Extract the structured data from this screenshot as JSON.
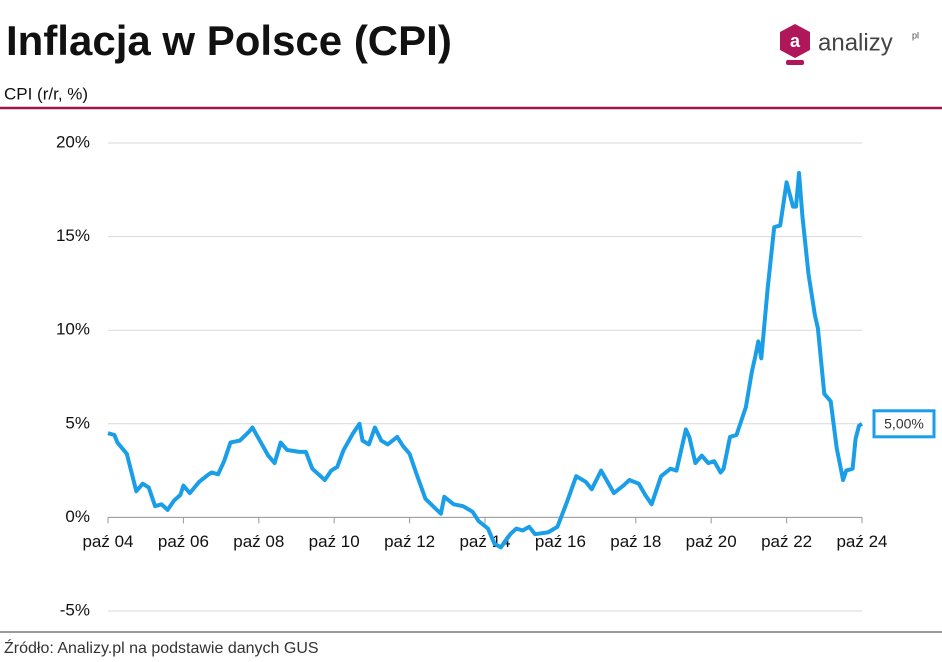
{
  "chart_data": {
    "type": "line",
    "title": "Inflacja w Polsce (CPI)",
    "subtitle": "CPI (r/r, %)",
    "source": "Źródło: Analizy.pl na podstawie danych GUS",
    "logo": {
      "icon": "a",
      "text": "analizy",
      "suffix": "pl"
    },
    "x": [
      2004.75,
      2004.92,
      2005.0,
      2005.25,
      2005.5,
      2005.67,
      2005.83,
      2006.0,
      2006.17,
      2006.33,
      2006.5,
      2006.67,
      2006.75,
      2006.92,
      2007.17,
      2007.42,
      2007.5,
      2007.67,
      2007.83,
      2008.0,
      2008.25,
      2008.5,
      2008.58,
      2008.75,
      2009.0,
      2009.17,
      2009.33,
      2009.5,
      2009.83,
      2010.0,
      2010.17,
      2010.5,
      2010.67,
      2010.83,
      2011.0,
      2011.25,
      2011.42,
      2011.5,
      2011.67,
      2011.83,
      2012.0,
      2012.17,
      2012.42,
      2012.58,
      2012.75,
      2012.92,
      2013.17,
      2013.42,
      2013.58,
      2013.67,
      2013.92,
      2014.17,
      2014.42,
      2014.58,
      2014.83,
      2015.0,
      2015.17,
      2015.42,
      2015.58,
      2015.75,
      2015.92,
      2016.08,
      2016.42,
      2016.67,
      2016.92,
      2017.17,
      2017.42,
      2017.58,
      2017.83,
      2018.0,
      2018.17,
      2018.42,
      2018.58,
      2018.83,
      2019.0,
      2019.17,
      2019.42,
      2019.67,
      2019.83,
      2020.08,
      2020.17,
      2020.33,
      2020.5,
      2020.67,
      2020.83,
      2021.0,
      2021.08,
      2021.25,
      2021.42,
      2021.67,
      2021.83,
      2021.92,
      2022.0,
      2022.08,
      2022.25,
      2022.42,
      2022.58,
      2022.75,
      2022.92,
      2023.0,
      2023.08,
      2023.17,
      2023.33,
      2023.5,
      2023.58,
      2023.75,
      2023.92,
      2024.08,
      2024.25,
      2024.33,
      2024.5,
      2024.58,
      2024.67,
      2024.75
    ],
    "series": [
      {
        "name": "CPI",
        "color": "#1a9ee8",
        "values": [
          4.5,
          4.4,
          4.0,
          3.4,
          1.4,
          1.8,
          1.6,
          0.6,
          0.7,
          0.4,
          0.9,
          1.2,
          1.7,
          1.3,
          1.9,
          2.3,
          2.4,
          2.3,
          3.0,
          4.0,
          4.1,
          4.6,
          4.8,
          4.2,
          3.3,
          2.9,
          4.0,
          3.6,
          3.5,
          3.5,
          2.6,
          2.0,
          2.5,
          2.7,
          3.6,
          4.5,
          5.0,
          4.1,
          3.9,
          4.8,
          4.1,
          3.9,
          4.3,
          3.8,
          3.4,
          2.4,
          1.0,
          0.5,
          0.2,
          1.1,
          0.7,
          0.6,
          0.3,
          -0.2,
          -0.6,
          -1.4,
          -1.6,
          -0.9,
          -0.6,
          -0.7,
          -0.5,
          -0.9,
          -0.8,
          -0.5,
          0.8,
          2.2,
          1.9,
          1.5,
          2.5,
          1.9,
          1.3,
          1.7,
          2.0,
          1.8,
          1.2,
          0.7,
          2.2,
          2.6,
          2.5,
          4.7,
          4.3,
          2.9,
          3.3,
          2.9,
          3.0,
          2.4,
          2.6,
          4.3,
          4.4,
          5.9,
          7.8,
          8.6,
          9.4,
          8.5,
          12.3,
          15.5,
          15.6,
          17.9,
          16.6,
          16.6,
          18.4,
          16.1,
          13.0,
          10.8,
          10.1,
          6.6,
          6.2,
          3.7,
          2.0,
          2.5,
          2.6,
          4.2,
          4.9,
          5.0
        ]
      }
    ],
    "last_value_label": "5,00%",
    "xlim": [
      2004.75,
      2024.75
    ],
    "xticks": [
      {
        "value": 2004.75,
        "label": "paź 04"
      },
      {
        "value": 2006.75,
        "label": "paź 06"
      },
      {
        "value": 2008.75,
        "label": "paź 08"
      },
      {
        "value": 2010.75,
        "label": "paź 10"
      },
      {
        "value": 2012.75,
        "label": "paź 12"
      },
      {
        "value": 2014.75,
        "label": "paź 14"
      },
      {
        "value": 2016.75,
        "label": "paź 16"
      },
      {
        "value": 2018.75,
        "label": "paź 18"
      },
      {
        "value": 2020.75,
        "label": "paź 20"
      },
      {
        "value": 2022.75,
        "label": "paź 22"
      },
      {
        "value": 2024.75,
        "label": "paź 24"
      }
    ],
    "ylim": [
      -5,
      20
    ],
    "yticks": [
      {
        "value": -5,
        "label": "-5%"
      },
      {
        "value": 0,
        "label": "0%"
      },
      {
        "value": 5,
        "label": "5%"
      },
      {
        "value": 10,
        "label": "10%"
      },
      {
        "value": 15,
        "label": "15%"
      },
      {
        "value": 20,
        "label": "20%"
      }
    ],
    "grid": true
  }
}
